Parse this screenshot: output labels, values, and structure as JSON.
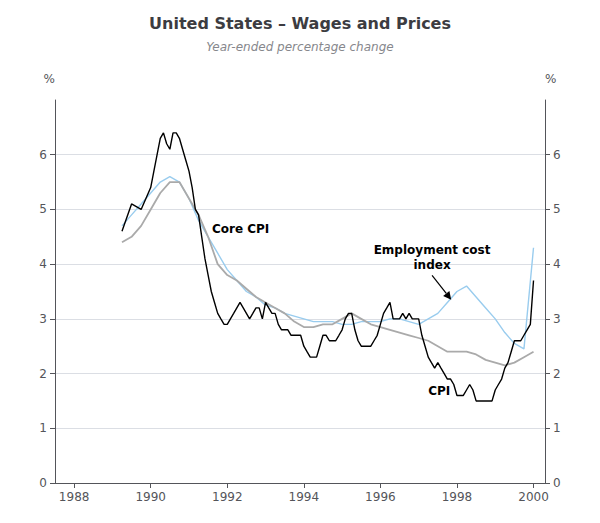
{
  "chart_data": {
    "type": "line",
    "title": "United States – Wages and Prices",
    "subtitle": "Year-ended percentage change",
    "y_label": "%",
    "y2_label": "%",
    "xlim": [
      1987.5,
      2000.3
    ],
    "xticks": [
      1988,
      1990,
      1992,
      1994,
      1996,
      1998,
      2000
    ],
    "ylim": [
      0,
      7
    ],
    "yticks": [
      0,
      1,
      2,
      3,
      4,
      5,
      6
    ],
    "y2lim": [
      0,
      7
    ],
    "y2ticks": [
      0,
      1,
      2,
      3,
      4,
      5,
      6
    ],
    "grid": true,
    "series": [
      {
        "color": "#99ccee",
        "x": [
          1989.25,
          1989.5,
          1989.75,
          1990.0,
          1990.25,
          1990.5,
          1990.75,
          1991.0,
          1991.25,
          1991.5,
          1991.75,
          1992.0,
          1992.25,
          1992.5,
          1992.75,
          1993.0,
          1993.25,
          1993.5,
          1993.75,
          1994.0,
          1994.25,
          1994.5,
          1994.75,
          1995.0,
          1995.25,
          1995.5,
          1995.75,
          1996.0,
          1996.25,
          1996.5,
          1996.75,
          1997.0,
          1997.25,
          1997.5,
          1997.75,
          1998.0,
          1998.25,
          1998.5,
          1998.75,
          1999.0,
          1999.25,
          1999.5,
          1999.75,
          2000.0
        ],
        "values": [
          4.7,
          4.9,
          5.1,
          5.3,
          5.5,
          5.6,
          5.5,
          5.2,
          4.8,
          4.5,
          4.2,
          3.9,
          3.7,
          3.5,
          3.4,
          3.25,
          3.2,
          3.1,
          3.05,
          3.0,
          2.95,
          2.95,
          2.95,
          2.9,
          2.9,
          2.95,
          2.95,
          2.95,
          3.0,
          3.0,
          2.95,
          2.9,
          3.0,
          3.1,
          3.3,
          3.5,
          3.6,
          3.4,
          3.2,
          3.0,
          2.75,
          2.55,
          2.45,
          4.3
        ]
      },
      {
        "color": "#aaaaaa",
        "x": [
          1989.25,
          1989.5,
          1989.75,
          1990.0,
          1990.25,
          1990.5,
          1990.75,
          1991.0,
          1991.25,
          1991.5,
          1991.75,
          1992.0,
          1992.25,
          1992.5,
          1992.75,
          1993.0,
          1993.25,
          1993.5,
          1993.75,
          1994.0,
          1994.25,
          1994.5,
          1994.75,
          1995.0,
          1995.25,
          1995.5,
          1995.75,
          1996.0,
          1996.25,
          1996.5,
          1996.75,
          1997.0,
          1997.25,
          1997.5,
          1997.75,
          1998.0,
          1998.25,
          1998.5,
          1998.75,
          1999.0,
          1999.25,
          1999.5,
          1999.75,
          2000.0
        ],
        "values": [
          4.4,
          4.5,
          4.7,
          5.0,
          5.3,
          5.5,
          5.5,
          5.2,
          4.9,
          4.5,
          4.0,
          3.8,
          3.7,
          3.55,
          3.4,
          3.3,
          3.2,
          3.1,
          2.95,
          2.85,
          2.85,
          2.9,
          2.9,
          3.0,
          3.1,
          3.0,
          2.9,
          2.85,
          2.8,
          2.75,
          2.7,
          2.65,
          2.6,
          2.5,
          2.4,
          2.4,
          2.4,
          2.35,
          2.25,
          2.2,
          2.15,
          2.2,
          2.3,
          2.4
        ]
      },
      {
        "color": "#000000",
        "x": [
          1989.25,
          1989.5,
          1989.75,
          1990.0,
          1990.083,
          1990.167,
          1990.25,
          1990.333,
          1990.417,
          1990.5,
          1990.583,
          1990.667,
          1990.75,
          1990.833,
          1990.917,
          1991.0,
          1991.083,
          1991.167,
          1991.25,
          1991.333,
          1991.417,
          1991.5,
          1991.583,
          1991.667,
          1991.75,
          1991.833,
          1991.917,
          1992.0,
          1992.083,
          1992.167,
          1992.25,
          1992.333,
          1992.417,
          1992.5,
          1992.583,
          1992.667,
          1992.75,
          1992.833,
          1992.917,
          1993.0,
          1993.083,
          1993.167,
          1993.25,
          1993.333,
          1993.417,
          1993.5,
          1993.583,
          1993.667,
          1993.75,
          1993.833,
          1993.917,
          1994.0,
          1994.083,
          1994.167,
          1994.25,
          1994.333,
          1994.417,
          1994.5,
          1994.583,
          1994.667,
          1994.75,
          1994.833,
          1994.917,
          1995.0,
          1995.083,
          1995.167,
          1995.25,
          1995.333,
          1995.417,
          1995.5,
          1995.583,
          1995.667,
          1995.75,
          1995.833,
          1995.917,
          1996.0,
          1996.083,
          1996.167,
          1996.25,
          1996.333,
          1996.417,
          1996.5,
          1996.583,
          1996.667,
          1996.75,
          1996.833,
          1996.917,
          1997.0,
          1997.083,
          1997.167,
          1997.25,
          1997.333,
          1997.417,
          1997.5,
          1997.583,
          1997.667,
          1997.75,
          1997.833,
          1997.917,
          1998.0,
          1998.083,
          1998.167,
          1998.25,
          1998.333,
          1998.417,
          1998.5,
          1998.583,
          1998.667,
          1998.75,
          1998.833,
          1998.917,
          1999.0,
          1999.083,
          1999.167,
          1999.25,
          1999.333,
          1999.417,
          1999.5,
          1999.583,
          1999.667,
          1999.75,
          1999.833,
          1999.917,
          2000.0
        ],
        "values": [
          4.6,
          5.1,
          5.0,
          5.4,
          5.7,
          6.0,
          6.3,
          6.4,
          6.2,
          6.1,
          6.4,
          6.4,
          6.3,
          6.1,
          5.9,
          5.7,
          5.4,
          5.0,
          4.9,
          4.5,
          4.1,
          3.8,
          3.5,
          3.3,
          3.1,
          3.0,
          2.9,
          2.9,
          3.0,
          3.1,
          3.2,
          3.3,
          3.2,
          3.1,
          3.0,
          3.1,
          3.2,
          3.2,
          3.0,
          3.3,
          3.2,
          3.1,
          3.1,
          2.9,
          2.8,
          2.8,
          2.8,
          2.7,
          2.7,
          2.7,
          2.7,
          2.5,
          2.4,
          2.3,
          2.3,
          2.3,
          2.5,
          2.7,
          2.7,
          2.6,
          2.6,
          2.6,
          2.7,
          2.8,
          3.0,
          3.1,
          3.1,
          2.8,
          2.6,
          2.5,
          2.5,
          2.5,
          2.5,
          2.6,
          2.7,
          2.9,
          3.1,
          3.2,
          3.3,
          3.0,
          3.0,
          3.0,
          3.1,
          3.0,
          3.1,
          3.0,
          3.0,
          3.0,
          2.7,
          2.5,
          2.3,
          2.2,
          2.1,
          2.2,
          2.1,
          2.0,
          1.9,
          1.9,
          1.8,
          1.6,
          1.6,
          1.6,
          1.7,
          1.8,
          1.7,
          1.5,
          1.5,
          1.5,
          1.5,
          1.5,
          1.5,
          1.7,
          1.8,
          1.9,
          2.1,
          2.2,
          2.4,
          2.6,
          2.6,
          2.6,
          2.7,
          2.8,
          2.9,
          3.7
        ]
      }
    ],
    "annotations": [
      {
        "text": "Core CPI",
        "x": 1991.6,
        "y": 4.5
      },
      {
        "text": "CPI",
        "x": 1997.25,
        "y": 1.55
      },
      {
        "text": "Employment cost\nindex",
        "x": 1997.35,
        "y": 3.85,
        "arrow_x": 1997.85,
        "arrow_y": 3.35
      }
    ]
  }
}
